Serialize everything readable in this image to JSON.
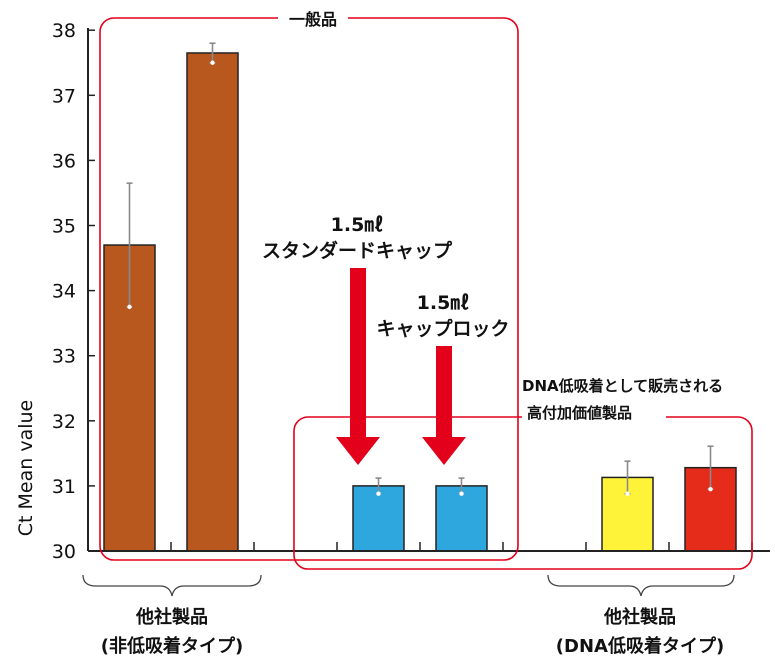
{
  "chart_data": {
    "type": "bar",
    "ylabel": "Ct Mean value",
    "ylim": [
      30,
      38
    ],
    "yticks": [
      "30",
      "31",
      "32",
      "33",
      "34",
      "35",
      "36",
      "37",
      "38"
    ],
    "categories": [
      "",
      "",
      "",
      "",
      "",
      "",
      "",
      ""
    ],
    "values": [
      34.7,
      37.65,
      null,
      31.0,
      31.0,
      null,
      31.13,
      31.28
    ],
    "errors": [
      0.95,
      0.15,
      null,
      0.12,
      0.12,
      null,
      0.25,
      0.33
    ],
    "colors": [
      "#b8581f",
      "#b8581f",
      null,
      "#2ea7df",
      "#2ea7df",
      null,
      "#fff33a",
      "#e52b1a"
    ],
    "grid": false
  },
  "annotations": {
    "general_box_label": "一般品",
    "standard_cap_line1": "1.5㎖",
    "standard_cap_line2": "スタンダードキャップ",
    "caplock_line1": "1.5㎖",
    "caplock_line2": "キャップロック",
    "low_adsorption_line1": "DNA低吸着として販売される",
    "low_adsorption_line2": "高付加価値製品"
  },
  "groups": {
    "left_line1": "他社製品",
    "left_line2": "(非低吸着タイプ)",
    "right_line1": "他社製品",
    "right_line2": "(DNA低吸着タイプ)"
  },
  "colors": {
    "box_outline": "#e3001b",
    "arrow": "#e3001b"
  }
}
